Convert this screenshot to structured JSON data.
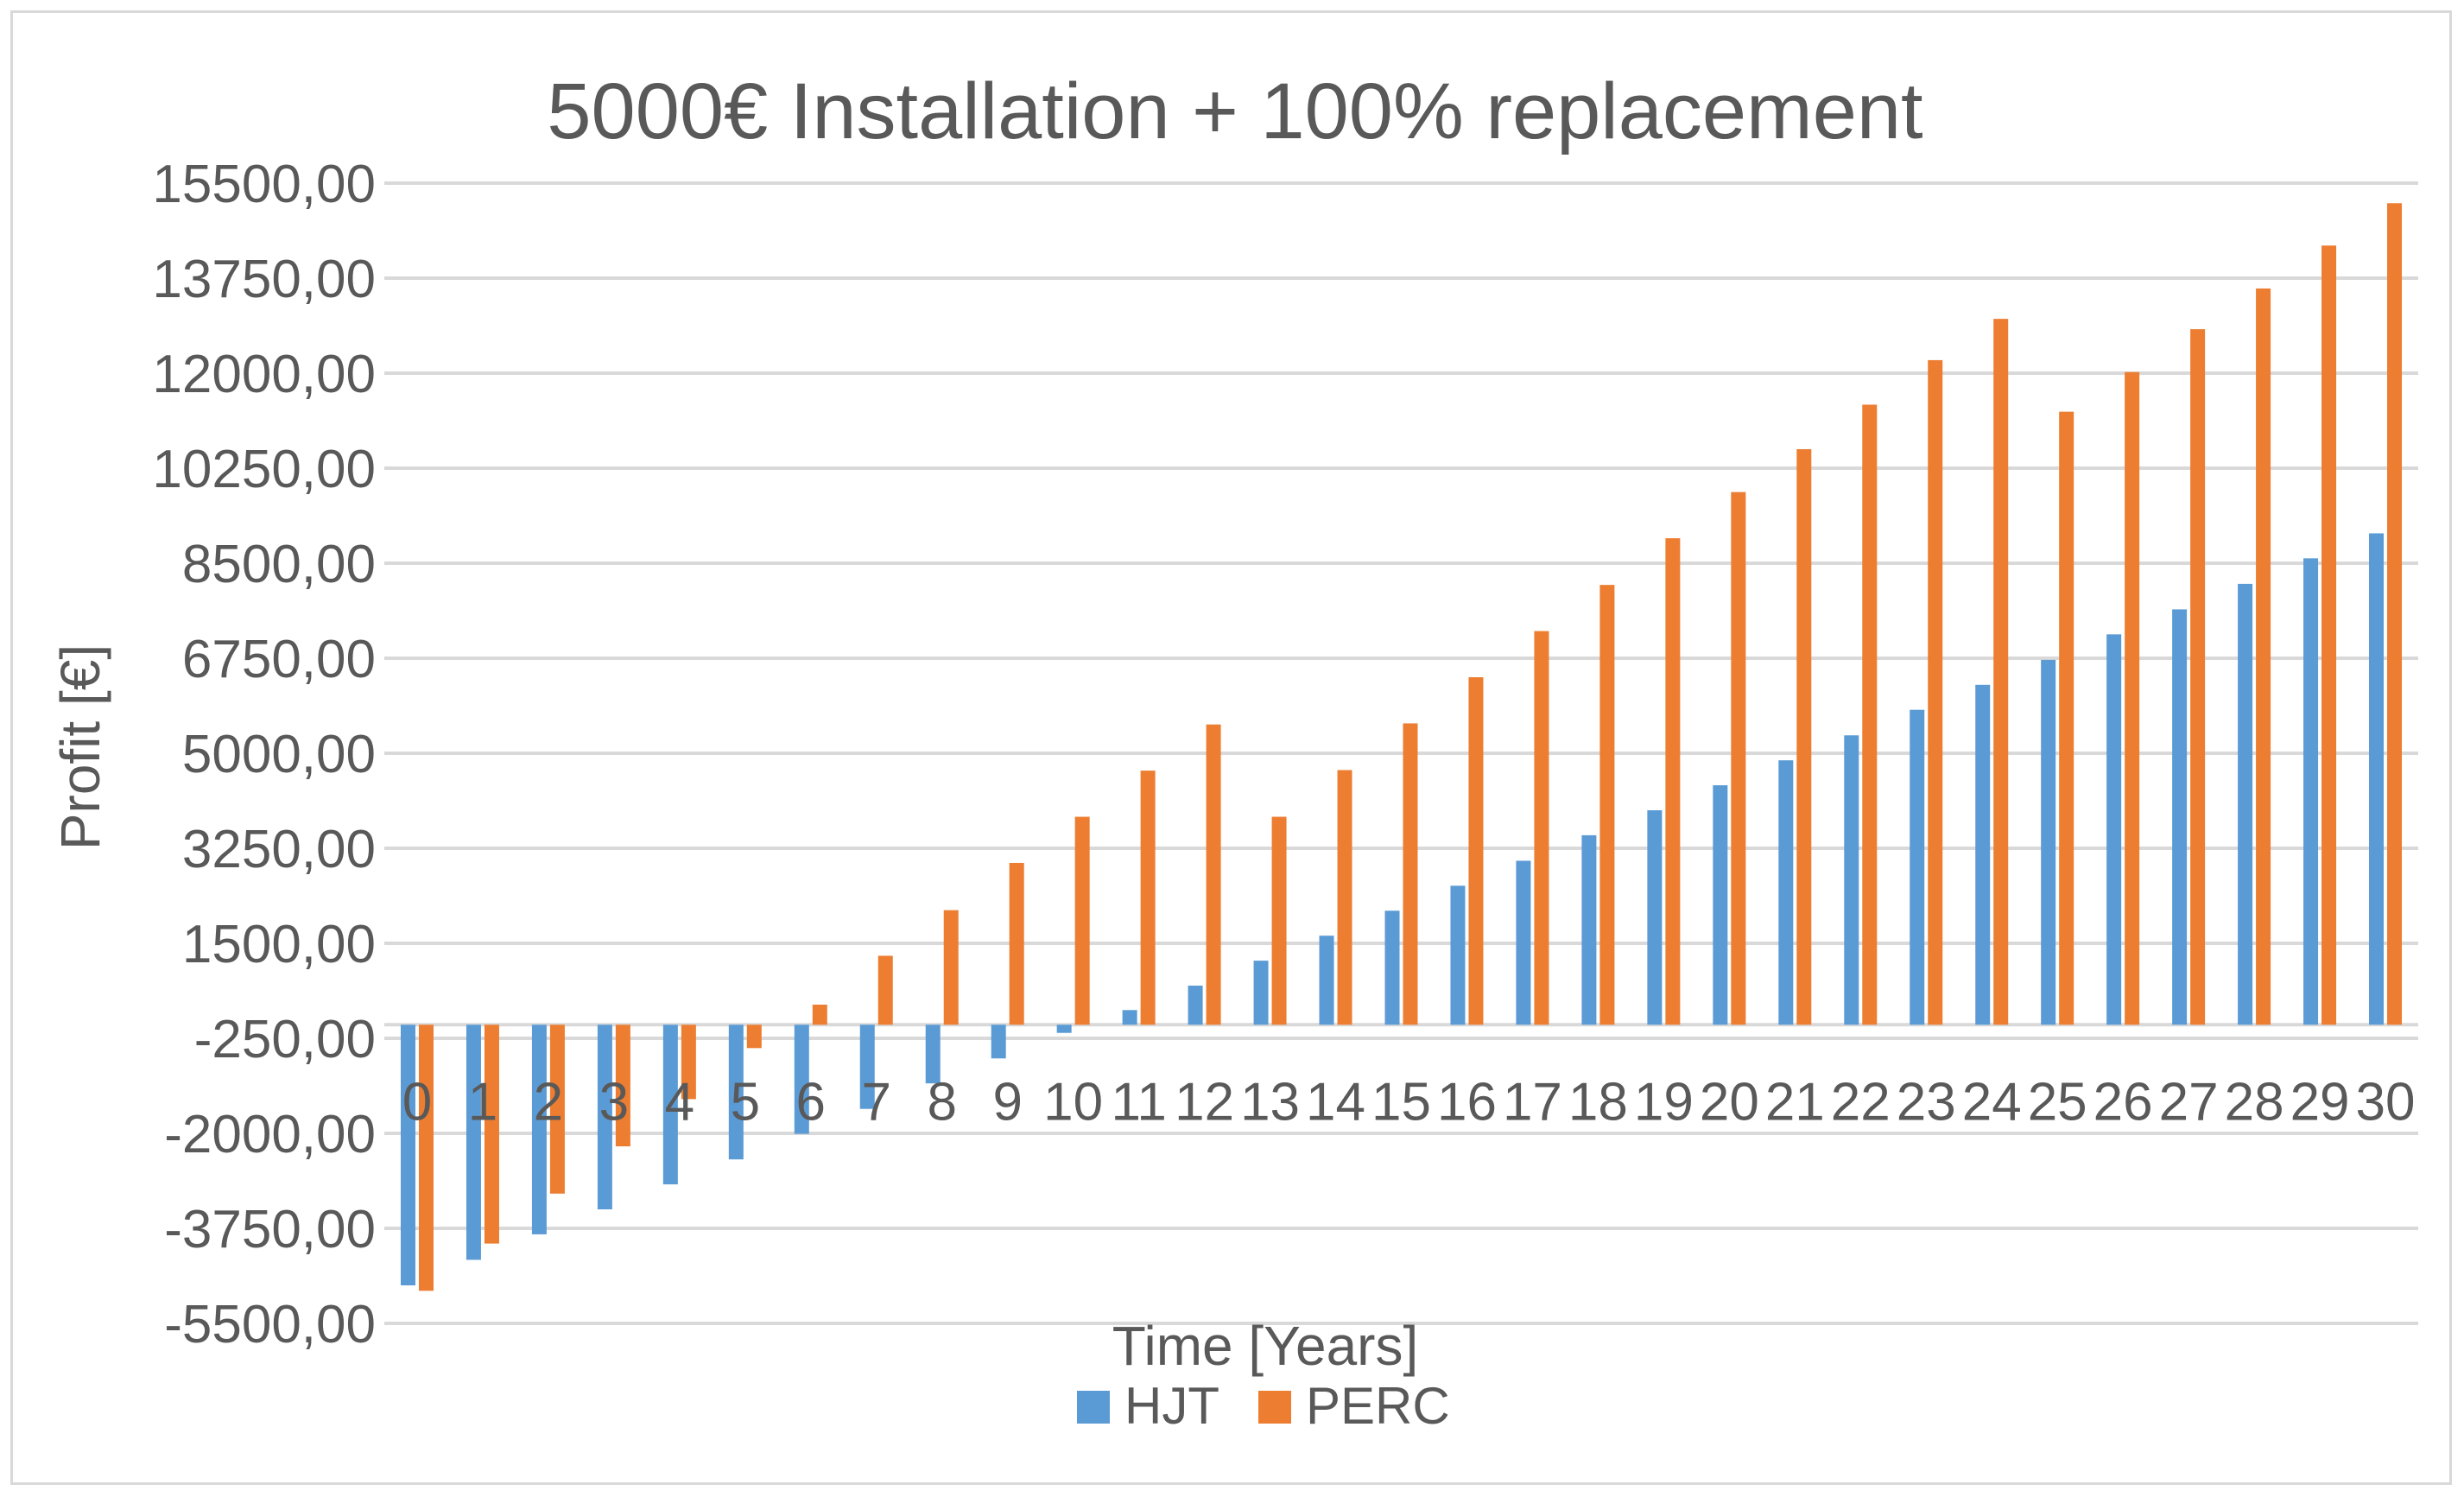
{
  "chart_data": {
    "type": "bar",
    "title": "5000€ Installation + 100% replacement",
    "xlabel": "Time [Years]",
    "ylabel": "Profit [€]",
    "ylim": [
      -5500,
      15500
    ],
    "yticks": [
      15500,
      13750,
      12000,
      10250,
      8500,
      6750,
      5000,
      3250,
      1500,
      -250,
      -2000,
      -3750,
      -5500
    ],
    "ytick_labels": [
      "15500,00",
      "13750,00",
      "12000,00",
      "10250,00",
      "8500,00",
      "6750,00",
      "5000,00",
      "3250,00",
      "1500,00",
      "-250,00",
      "-2000,00",
      "-3750,00",
      "-5500,00"
    ],
    "grid": true,
    "legend_position": "bottom",
    "categories": [
      "0",
      "1",
      "2",
      "3",
      "4",
      "5",
      "6",
      "7",
      "8",
      "9",
      "10",
      "11",
      "12",
      "13",
      "14",
      "15",
      "16",
      "17",
      "18",
      "19",
      "20",
      "21",
      "22",
      "23",
      "24",
      "25",
      "26",
      "27",
      "28",
      "29",
      "30"
    ],
    "series": [
      {
        "name": "HJT",
        "color": "#5b9bd5",
        "values": [
          -4800,
          -4330,
          -3860,
          -3400,
          -2940,
          -2480,
          -2010,
          -1550,
          -1080,
          -620,
          -150,
          270,
          720,
          1180,
          1640,
          2100,
          2560,
          3020,
          3490,
          3950,
          4410,
          4870,
          5330,
          5800,
          6260,
          6720,
          7190,
          7650,
          8120,
          8590,
          9050
        ]
      },
      {
        "name": "PERC",
        "color": "#ed7d31",
        "values": [
          -4900,
          -4030,
          -3110,
          -2240,
          -1370,
          -430,
          370,
          1270,
          2110,
          2980,
          3830,
          4680,
          5530,
          3830,
          4690,
          5550,
          6400,
          7250,
          8100,
          8960,
          9810,
          10600,
          11420,
          12240,
          13000,
          11290,
          12020,
          12810,
          13560,
          14350,
          15130
        ]
      }
    ]
  }
}
